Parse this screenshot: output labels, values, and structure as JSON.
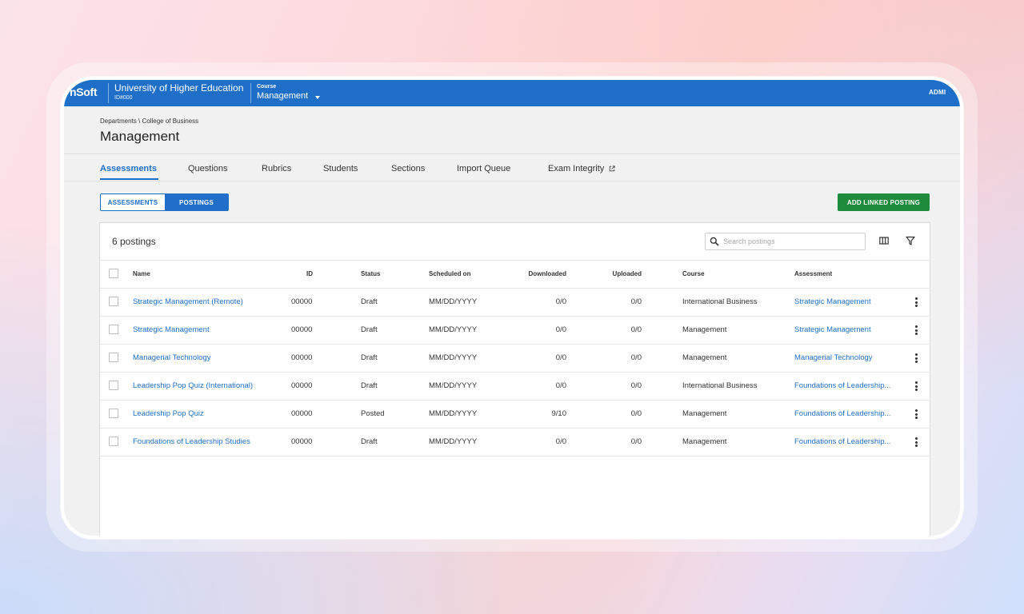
{
  "topbar": {
    "brand": "nSoft",
    "institution": "University of Higher Education",
    "institution_id": "ID#000",
    "course_label": "Course",
    "course_value": "Management",
    "user": "ADMI"
  },
  "header": {
    "breadcrumb": "Departments \\ College of Business",
    "title": "Management"
  },
  "tabs": [
    {
      "label": "Assessments",
      "active": true
    },
    {
      "label": "Questions"
    },
    {
      "label": "Rubrics"
    },
    {
      "label": "Students"
    },
    {
      "label": "Sections"
    },
    {
      "label": "Import Queue"
    },
    {
      "label": "Exam Integrity",
      "icon": "external-link-icon"
    }
  ],
  "toggle": {
    "assessments": "ASSESSMENTS",
    "postings": "POSTINGS",
    "selected": "POSTINGS"
  },
  "add_button": "ADD LINKED POSTING",
  "card": {
    "count_label": "6 postings",
    "search_placeholder": "Search postings"
  },
  "table": {
    "columns": [
      "Name",
      "ID",
      "Status",
      "Scheduled on",
      "Downloaded",
      "Uploaded",
      "Course",
      "Assessment"
    ],
    "rows": [
      {
        "name": "Strategic Management (Remote)",
        "id": "00000",
        "status": "Draft",
        "scheduled": "MM/DD/YYYY",
        "downloaded": "0/0",
        "uploaded": "0/0",
        "course": "International Business",
        "assessment": "Strategic Management"
      },
      {
        "name": "Strategic Management",
        "id": "00000",
        "status": "Draft",
        "scheduled": "MM/DD/YYYY",
        "downloaded": "0/0",
        "uploaded": "0/0",
        "course": "Management",
        "assessment": "Strategic Management"
      },
      {
        "name": "Managerial Technology",
        "id": "00000",
        "status": "Draft",
        "scheduled": "MM/DD/YYYY",
        "downloaded": "0/0",
        "uploaded": "0/0",
        "course": "Management",
        "assessment": "Managerial Technology"
      },
      {
        "name": "Leadership Pop Quiz (International)",
        "id": "00000",
        "status": "Draft",
        "scheduled": "MM/DD/YYYY",
        "downloaded": "0/0",
        "uploaded": "0/0",
        "course": "International Business",
        "assessment": "Foundations of Leadership..."
      },
      {
        "name": "Leadership Pop Quiz",
        "id": "00000",
        "status": "Posted",
        "scheduled": "MM/DD/YYYY",
        "downloaded": "9/10",
        "uploaded": "0/0",
        "course": "Management",
        "assessment": "Foundations of Leadership..."
      },
      {
        "name": "Foundations of Leadership Studies",
        "id": "00000",
        "status": "Draft",
        "scheduled": "MM/DD/YYYY",
        "downloaded": "0/0",
        "uploaded": "0/0",
        "course": "Management",
        "assessment": "Foundations of Leadership..."
      }
    ]
  },
  "colors": {
    "primary": "#1f6fc9",
    "success": "#1e8a3c"
  }
}
